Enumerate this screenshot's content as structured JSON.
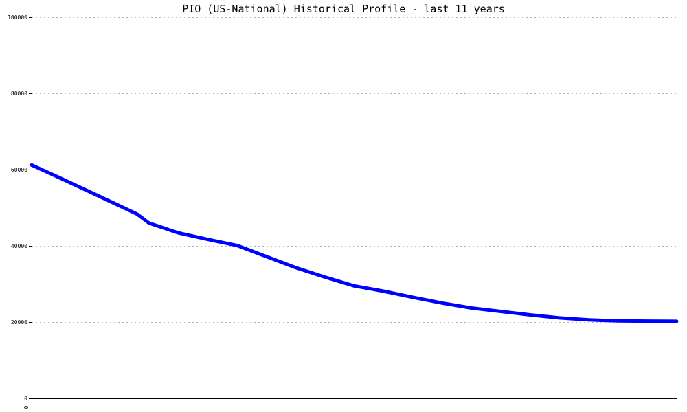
{
  "chart_data": {
    "type": "line",
    "title": "PIO (US-National) Historical Profile - last 11 years",
    "xlabel": "",
    "ylabel": "",
    "ylim": [
      0,
      100000
    ],
    "yticks": [
      0,
      20000,
      40000,
      60000,
      80000,
      100000
    ],
    "ytick_labels": [
      "0",
      "20000",
      "40000",
      "60000",
      "80000",
      "100000"
    ],
    "xtick_labels": [
      "0"
    ],
    "grid": true,
    "legend": "none",
    "x": [
      0,
      0.5,
      1,
      1.5,
      1.8,
      2,
      2.5,
      3,
      3.5,
      4,
      4.5,
      5,
      5.5,
      6,
      6.5,
      7,
      7.5,
      8,
      8.5,
      9,
      9.5,
      10,
      10.5,
      11
    ],
    "series": [
      {
        "color": "#0000ff",
        "values": [
          61200,
          57700,
          54100,
          50500,
          48300,
          46000,
          43400,
          41700,
          40100,
          37200,
          34300,
          31800,
          29500,
          28100,
          26500,
          25000,
          23700,
          22800,
          21900,
          21100,
          20600,
          20300,
          20250,
          20200
        ]
      }
    ]
  }
}
